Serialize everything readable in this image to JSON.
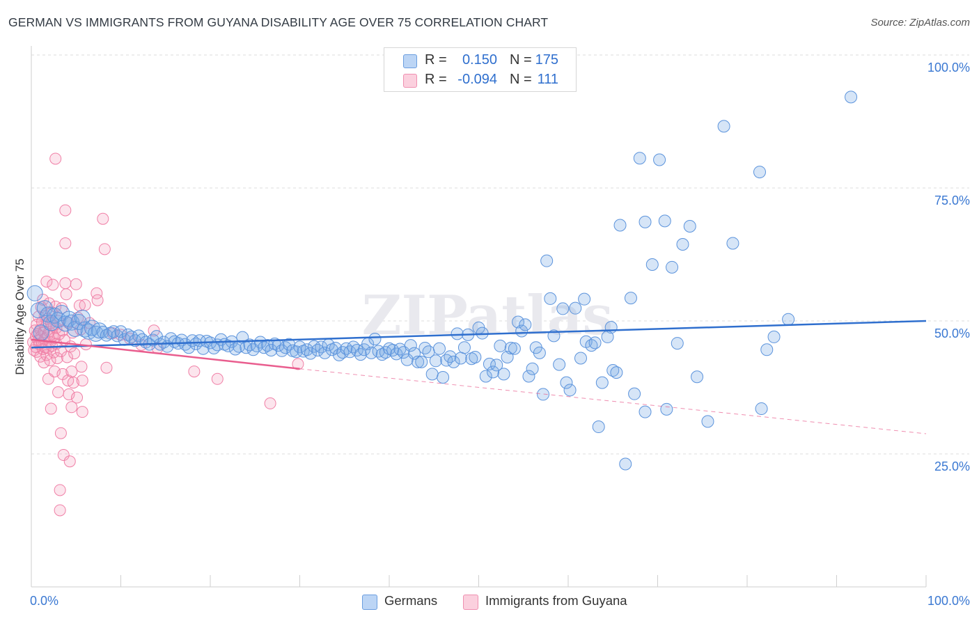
{
  "header": {
    "title": "GERMAN VS IMMIGRANTS FROM GUYANA DISABILITY AGE OVER 75 CORRELATION CHART",
    "source": "Source: ZipAtlas.com"
  },
  "legend": {
    "rows": [
      {
        "r_label": "R =",
        "r_value": "0.150",
        "n_label": "N =",
        "n_value": "175",
        "color": "#a8c8f0"
      },
      {
        "r_label": "R =",
        "r_value": "-0.094",
        "n_label": "N =",
        "n_value": "111",
        "color": "#f6b3c9"
      }
    ]
  },
  "bottom_legend": {
    "series1": "Germans",
    "series2": "Immigrants from Guyana"
  },
  "watermark": "ZIPatlas",
  "colors": {
    "blue_fill": "rgba(120,170,230,0.30)",
    "blue_stroke": "#5b93dc",
    "blue_line": "#2f6fce",
    "pink_fill": "rgba(245,150,185,0.25)",
    "pink_stroke": "#f07fa6",
    "pink_line": "#e95d8e",
    "tick_label": "#3a78d2"
  },
  "chart_data": {
    "type": "scatter",
    "title": "GERMAN VS IMMIGRANTS FROM GUYANA DISABILITY AGE OVER 75 CORRELATION CHART",
    "xlabel": "",
    "ylabel": "Disability Age Over 75",
    "xlim": [
      0,
      100
    ],
    "ylim": [
      0,
      105
    ],
    "x_tick_labels": [
      "0.0%",
      "100.0%"
    ],
    "y_tick_values": [
      25,
      50,
      75,
      100
    ],
    "y_tick_labels": [
      "25.0%",
      "50.0%",
      "75.0%",
      "100.0%"
    ],
    "grid": "horizontal dashed",
    "legend_placement": "top-center",
    "series": [
      {
        "name": "Germans",
        "R": 0.15,
        "N": 175,
        "trend": {
          "x": [
            0,
            100
          ],
          "y": [
            45.0,
            50.0
          ]
        },
        "points": [
          [
            0.4,
            55.2
          ],
          [
            0.8,
            52.0
          ],
          [
            1.1,
            47.8
          ],
          [
            1.5,
            52.4
          ],
          [
            1.9,
            51.2
          ],
          [
            2.2,
            49.6
          ],
          [
            2.6,
            51.0
          ],
          [
            3.0,
            50.2
          ],
          [
            3.4,
            51.5
          ],
          [
            3.8,
            49.5
          ],
          [
            4.2,
            50.4
          ],
          [
            4.5,
            49.7
          ],
          [
            4.9,
            48.5
          ],
          [
            5.3,
            49.8
          ],
          [
            5.7,
            50.6
          ],
          [
            6.0,
            48.4
          ],
          [
            6.4,
            48.0
          ],
          [
            6.8,
            48.7
          ],
          [
            7.2,
            47.6
          ],
          [
            7.6,
            48.2
          ],
          [
            8.0,
            47.9
          ],
          [
            8.4,
            47.3
          ],
          [
            8.8,
            47.7
          ],
          [
            9.2,
            48.0
          ],
          [
            9.6,
            47.2
          ],
          [
            10.0,
            48.0
          ],
          [
            10.4,
            46.5
          ],
          [
            10.8,
            47.4
          ],
          [
            11.2,
            47.0
          ],
          [
            11.6,
            46.3
          ],
          [
            12.0,
            47.2
          ],
          [
            12.4,
            46.5
          ],
          [
            12.8,
            46.0
          ],
          [
            13.2,
            45.6
          ],
          [
            13.6,
            46.4
          ],
          [
            14.0,
            47.1
          ],
          [
            14.4,
            45.6
          ],
          [
            14.8,
            46.0
          ],
          [
            15.2,
            45.2
          ],
          [
            15.6,
            46.7
          ],
          [
            16.0,
            46.1
          ],
          [
            16.4,
            45.8
          ],
          [
            16.8,
            46.4
          ],
          [
            17.2,
            45.6
          ],
          [
            17.6,
            45.0
          ],
          [
            18.0,
            46.3
          ],
          [
            18.4,
            45.7
          ],
          [
            18.8,
            46.3
          ],
          [
            19.2,
            44.8
          ],
          [
            19.6,
            46.2
          ],
          [
            20.0,
            45.9
          ],
          [
            20.4,
            44.9
          ],
          [
            20.8,
            45.5
          ],
          [
            21.2,
            46.5
          ],
          [
            21.6,
            45.6
          ],
          [
            22.0,
            45.3
          ],
          [
            22.4,
            46.1
          ],
          [
            22.8,
            44.7
          ],
          [
            23.2,
            45.2
          ],
          [
            23.6,
            46.9
          ],
          [
            24.0,
            45.0
          ],
          [
            24.4,
            45.5
          ],
          [
            24.8,
            44.6
          ],
          [
            25.2,
            45.3
          ],
          [
            25.6,
            46.0
          ],
          [
            26.0,
            45.0
          ],
          [
            26.4,
            45.4
          ],
          [
            26.8,
            44.5
          ],
          [
            27.2,
            45.7
          ],
          [
            27.6,
            45.4
          ],
          [
            28.0,
            44.4
          ],
          [
            28.4,
            45.0
          ],
          [
            28.8,
            45.6
          ],
          [
            29.2,
            44.4
          ],
          [
            29.6,
            44.2
          ],
          [
            30.0,
            45.1
          ],
          [
            30.4,
            44.3
          ],
          [
            30.8,
            44.6
          ],
          [
            31.2,
            43.9
          ],
          [
            31.6,
            45.2
          ],
          [
            32.0,
            44.5
          ],
          [
            32.4,
            45.1
          ],
          [
            32.8,
            44.0
          ],
          [
            33.2,
            45.5
          ],
          [
            33.6,
            44.6
          ],
          [
            34.0,
            44.9
          ],
          [
            34.4,
            43.6
          ],
          [
            34.8,
            44.1
          ],
          [
            35.2,
            44.8
          ],
          [
            35.6,
            44.2
          ],
          [
            36.0,
            45.1
          ],
          [
            36.4,
            44.5
          ],
          [
            36.8,
            43.7
          ],
          [
            37.2,
            44.6
          ],
          [
            37.6,
            45.7
          ],
          [
            38.0,
            44.0
          ],
          [
            38.4,
            46.6
          ],
          [
            38.8,
            44.3
          ],
          [
            39.2,
            43.7
          ],
          [
            39.6,
            44.1
          ],
          [
            40.0,
            44.8
          ],
          [
            40.4,
            44.5
          ],
          [
            40.8,
            43.8
          ],
          [
            41.2,
            44.7
          ],
          [
            41.6,
            44.1
          ],
          [
            42.0,
            42.7
          ],
          [
            42.4,
            45.4
          ],
          [
            42.8,
            43.9
          ],
          [
            43.2,
            42.3
          ],
          [
            43.6,
            42.3
          ],
          [
            44.0,
            44.9
          ],
          [
            44.4,
            44.2
          ],
          [
            44.8,
            40.0
          ],
          [
            45.2,
            42.5
          ],
          [
            45.6,
            44.8
          ],
          [
            46.0,
            39.4
          ],
          [
            46.4,
            42.6
          ],
          [
            46.8,
            43.3
          ],
          [
            47.2,
            42.3
          ],
          [
            47.6,
            47.6
          ],
          [
            48.0,
            43.0
          ],
          [
            48.4,
            45.0
          ],
          [
            48.8,
            47.4
          ],
          [
            49.2,
            42.9
          ],
          [
            49.6,
            43.2
          ],
          [
            50.0,
            48.7
          ],
          [
            50.4,
            47.7
          ],
          [
            50.8,
            39.6
          ],
          [
            51.2,
            41.9
          ],
          [
            51.6,
            40.4
          ],
          [
            52.0,
            41.7
          ],
          [
            52.4,
            45.3
          ],
          [
            52.8,
            40.0
          ],
          [
            53.2,
            43.2
          ],
          [
            53.6,
            44.9
          ],
          [
            54.0,
            44.8
          ],
          [
            54.4,
            49.8
          ],
          [
            54.8,
            48.1
          ],
          [
            55.2,
            49.3
          ],
          [
            55.6,
            39.6
          ],
          [
            56.0,
            41.0
          ],
          [
            56.4,
            45.0
          ],
          [
            56.8,
            44.0
          ],
          [
            57.2,
            36.2
          ],
          [
            57.6,
            61.3
          ],
          [
            58.0,
            54.2
          ],
          [
            58.4,
            47.2
          ],
          [
            59.0,
            41.8
          ],
          [
            59.4,
            52.3
          ],
          [
            59.8,
            38.4
          ],
          [
            60.2,
            37.0
          ],
          [
            60.8,
            52.4
          ],
          [
            61.4,
            43.0
          ],
          [
            61.8,
            54.1
          ],
          [
            62.0,
            46.1
          ],
          [
            62.6,
            45.4
          ],
          [
            63.0,
            45.9
          ],
          [
            63.4,
            30.1
          ],
          [
            63.8,
            38.4
          ],
          [
            64.4,
            47.0
          ],
          [
            64.8,
            48.8
          ],
          [
            65.0,
            40.7
          ],
          [
            65.4,
            40.3
          ],
          [
            65.8,
            68.0
          ],
          [
            66.4,
            23.1
          ],
          [
            67.0,
            54.3
          ],
          [
            67.4,
            36.3
          ],
          [
            68.0,
            80.6
          ],
          [
            68.6,
            32.9
          ],
          [
            68.6,
            68.6
          ],
          [
            69.4,
            60.6
          ],
          [
            70.2,
            80.3
          ],
          [
            70.8,
            68.8
          ],
          [
            71.0,
            33.4
          ],
          [
            71.6,
            60.1
          ],
          [
            72.2,
            45.8
          ],
          [
            72.8,
            64.4
          ],
          [
            73.6,
            67.8
          ],
          [
            74.4,
            39.5
          ],
          [
            75.6,
            31.1
          ],
          [
            77.4,
            86.6
          ],
          [
            78.4,
            64.6
          ],
          [
            81.4,
            78.0
          ],
          [
            81.6,
            33.5
          ],
          [
            82.2,
            44.6
          ],
          [
            83.0,
            47.0
          ],
          [
            84.6,
            50.3
          ],
          [
            91.6,
            92.1
          ]
        ]
      },
      {
        "name": "Immigrants from Guyana",
        "R": -0.094,
        "N": 111,
        "trend_solid": {
          "x": [
            0,
            30
          ],
          "y": [
            46.5,
            41.0
          ]
        },
        "trend_dashed": {
          "x": [
            30,
            100
          ],
          "y": [
            41.0,
            28.8
          ]
        },
        "points": [
          [
            0.2,
            46.0
          ],
          [
            0.3,
            44.5
          ],
          [
            0.4,
            48.2
          ],
          [
            0.5,
            47.0
          ],
          [
            0.5,
            45.1
          ],
          [
            0.6,
            49.3
          ],
          [
            0.6,
            44.2
          ],
          [
            0.7,
            47.6
          ],
          [
            0.8,
            46.3
          ],
          [
            0.8,
            50.8
          ],
          [
            0.9,
            45.6
          ],
          [
            1.0,
            48.4
          ],
          [
            1.0,
            43.3
          ],
          [
            1.1,
            47.1
          ],
          [
            1.1,
            52.6
          ],
          [
            1.2,
            45.9
          ],
          [
            1.2,
            49.8
          ],
          [
            1.3,
            44.7
          ],
          [
            1.3,
            54.0
          ],
          [
            1.4,
            47.9
          ],
          [
            1.4,
            42.2
          ],
          [
            1.5,
            46.6
          ],
          [
            1.5,
            51.0
          ],
          [
            1.6,
            45.0
          ],
          [
            1.6,
            48.9
          ],
          [
            1.7,
            57.4
          ],
          [
            1.7,
            43.6
          ],
          [
            1.8,
            47.3
          ],
          [
            1.8,
            50.4
          ],
          [
            1.9,
            44.9
          ],
          [
            1.9,
            39.1
          ],
          [
            2.0,
            48.0
          ],
          [
            2.0,
            53.3
          ],
          [
            2.1,
            46.0
          ],
          [
            2.1,
            42.6
          ],
          [
            2.2,
            49.6
          ],
          [
            2.2,
            33.5
          ],
          [
            2.3,
            45.3
          ],
          [
            2.3,
            51.6
          ],
          [
            2.4,
            47.2
          ],
          [
            2.4,
            56.8
          ],
          [
            2.5,
            44.1
          ],
          [
            2.5,
            49.1
          ],
          [
            2.6,
            40.5
          ],
          [
            2.6,
            46.8
          ],
          [
            2.7,
            80.5
          ],
          [
            2.7,
            52.7
          ],
          [
            2.8,
            45.7
          ],
          [
            2.8,
            48.7
          ],
          [
            2.9,
            43.0
          ],
          [
            3.0,
            50.0
          ],
          [
            3.0,
            36.6
          ],
          [
            3.1,
            47.5
          ],
          [
            3.2,
            18.2
          ],
          [
            3.2,
            14.4
          ],
          [
            3.3,
            28.9
          ],
          [
            3.3,
            44.3
          ],
          [
            3.4,
            52.4
          ],
          [
            3.5,
            40.0
          ],
          [
            3.5,
            48.2
          ],
          [
            3.6,
            24.8
          ],
          [
            3.7,
            46.4
          ],
          [
            3.8,
            70.8
          ],
          [
            3.8,
            64.6
          ],
          [
            3.8,
            57.1
          ],
          [
            3.9,
            55.0
          ],
          [
            4.0,
            43.2
          ],
          [
            4.1,
            38.8
          ],
          [
            4.1,
            49.7
          ],
          [
            4.2,
            36.2
          ],
          [
            4.3,
            23.6
          ],
          [
            4.4,
            45.2
          ],
          [
            4.5,
            40.5
          ],
          [
            4.5,
            33.8
          ],
          [
            4.6,
            47.8
          ],
          [
            4.7,
            38.4
          ],
          [
            4.8,
            43.9
          ],
          [
            5.0,
            56.9
          ],
          [
            5.1,
            35.6
          ],
          [
            5.2,
            50.6
          ],
          [
            5.4,
            52.9
          ],
          [
            5.5,
            48.4
          ],
          [
            5.6,
            41.4
          ],
          [
            5.7,
            38.8
          ],
          [
            5.7,
            32.9
          ],
          [
            6.0,
            53.0
          ],
          [
            6.1,
            45.6
          ],
          [
            6.5,
            49.6
          ],
          [
            7.3,
            55.2
          ],
          [
            7.4,
            53.9
          ],
          [
            8.0,
            69.2
          ],
          [
            8.2,
            63.5
          ],
          [
            8.4,
            41.2
          ],
          [
            9.1,
            47.7
          ],
          [
            10.0,
            47.4
          ],
          [
            11.0,
            46.7
          ],
          [
            12.3,
            45.5
          ],
          [
            13.7,
            48.2
          ],
          [
            14.1,
            44.9
          ],
          [
            18.2,
            40.5
          ],
          [
            20.8,
            39.1
          ],
          [
            26.7,
            34.5
          ],
          [
            29.8,
            41.9
          ]
        ]
      }
    ]
  }
}
